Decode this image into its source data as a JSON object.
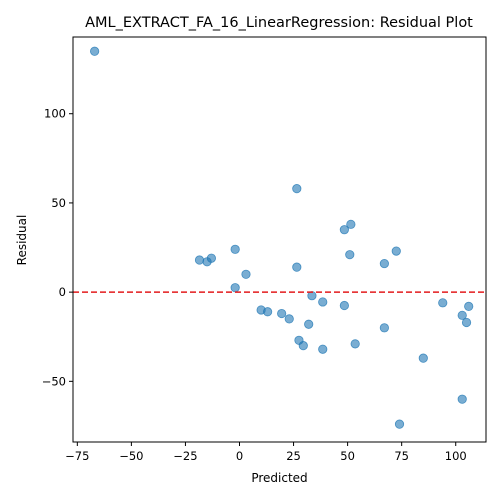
{
  "chart_data": {
    "type": "scatter",
    "title": "AML_EXTRACT_FA_16_LinearRegression: Residual Plot",
    "xlabel": "Predicted",
    "ylabel": "Residual",
    "xlim": [
      -77,
      114
    ],
    "ylim": [
      -84,
      143
    ],
    "xticks": [
      -75,
      -50,
      -25,
      0,
      25,
      50,
      75,
      100
    ],
    "xtick_labels": [
      "−75",
      "−50",
      "−25",
      "0",
      "25",
      "50",
      "75",
      "100"
    ],
    "yticks": [
      -50,
      0,
      50,
      100
    ],
    "ytick_labels": [
      "−50",
      "0",
      "50",
      "100"
    ],
    "grid": false,
    "point_color": "#1f77b4",
    "point_alpha": 0.6,
    "reference_line": {
      "y": 0,
      "color": "#e31a1c",
      "style": "dashed"
    },
    "points": [
      {
        "x": -67,
        "y": 135
      },
      {
        "x": 26.5,
        "y": 58
      },
      {
        "x": 51.5,
        "y": 38
      },
      {
        "x": 48.5,
        "y": 35
      },
      {
        "x": -2,
        "y": 24
      },
      {
        "x": 72.5,
        "y": 23
      },
      {
        "x": 51,
        "y": 21
      },
      {
        "x": -18.5,
        "y": 18
      },
      {
        "x": -13,
        "y": 19
      },
      {
        "x": -15,
        "y": 17
      },
      {
        "x": 67,
        "y": 16
      },
      {
        "x": 26.5,
        "y": 14
      },
      {
        "x": 3,
        "y": 10
      },
      {
        "x": -2,
        "y": 2.5
      },
      {
        "x": 33.5,
        "y": -2
      },
      {
        "x": 38.5,
        "y": -5.5
      },
      {
        "x": 48.5,
        "y": -7.5
      },
      {
        "x": 94,
        "y": -6
      },
      {
        "x": 106,
        "y": -8
      },
      {
        "x": 10,
        "y": -10
      },
      {
        "x": 13,
        "y": -11
      },
      {
        "x": 19.5,
        "y": -12
      },
      {
        "x": 23,
        "y": -15
      },
      {
        "x": 32,
        "y": -18
      },
      {
        "x": 103,
        "y": -13
      },
      {
        "x": 105,
        "y": -17
      },
      {
        "x": 67,
        "y": -20
      },
      {
        "x": 27.5,
        "y": -27
      },
      {
        "x": 29.5,
        "y": -30
      },
      {
        "x": 38.5,
        "y": -32
      },
      {
        "x": 53.5,
        "y": -29
      },
      {
        "x": 85,
        "y": -37
      },
      {
        "x": 103,
        "y": -60
      },
      {
        "x": 74,
        "y": -74
      }
    ]
  }
}
